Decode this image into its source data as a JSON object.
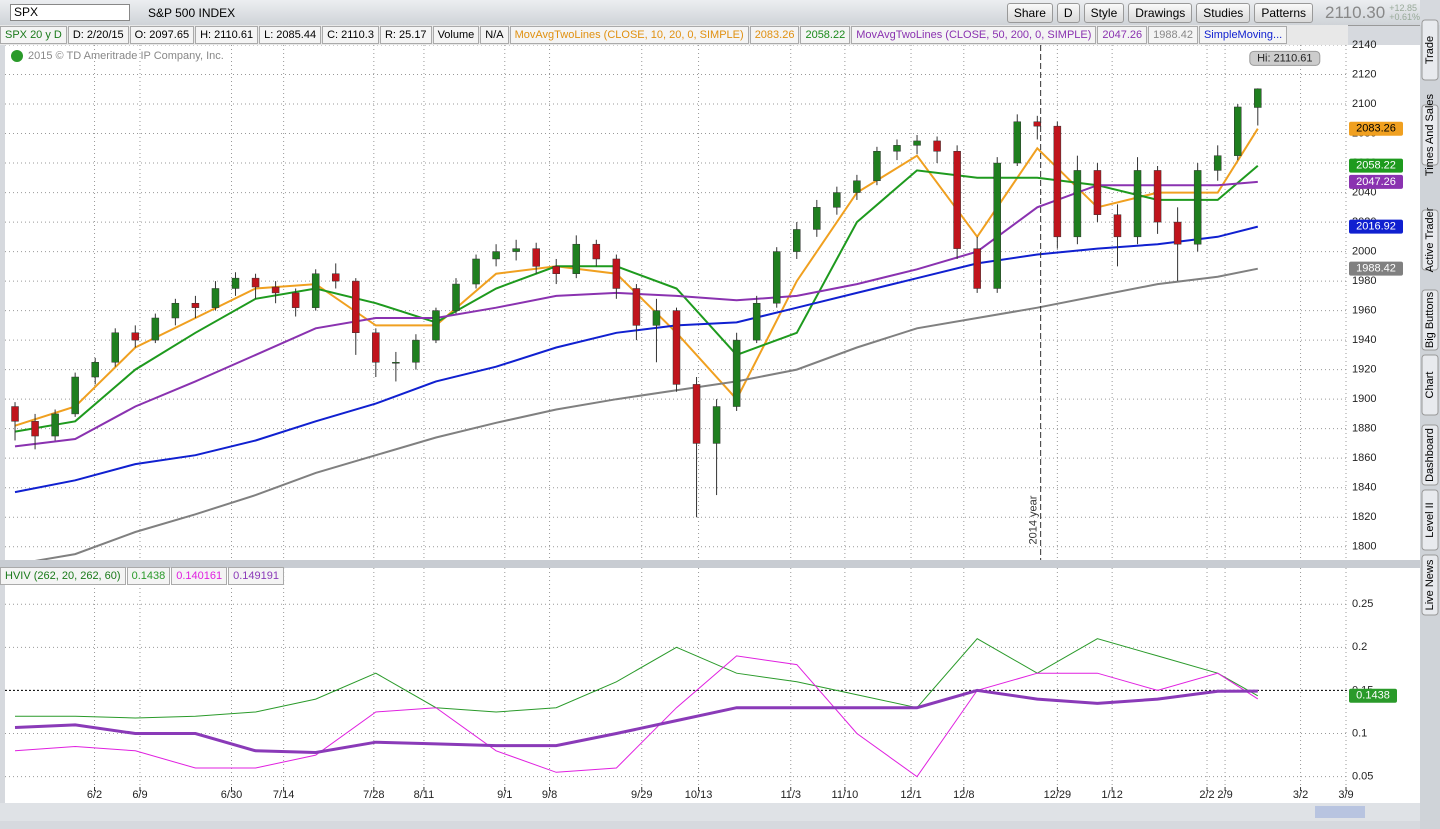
{
  "toolbar": {
    "symbol": "SPX",
    "name": "S&P 500 INDEX",
    "buttons": [
      "Share",
      "D",
      "Style",
      "Drawings",
      "Studies",
      "Patterns"
    ],
    "last": "2110.30",
    "change": "+12.85",
    "change_pct": "+0.61%"
  },
  "info_bar": {
    "items": [
      "SPX 20 y D",
      "D: 2/20/15",
      "O: 2097.65",
      "H: 2110.61",
      "L: 2085.44",
      "C: 2110.3",
      "R: 25.17",
      "Volume",
      "N/A"
    ],
    "study1": "MovAvgTwoLines (CLOSE, 10, 20, 0, SIMPLE)",
    "study2": "MovAvgTwoLines (CLOSE, 50, 200, 0, SIMPLE)",
    "study3": "SimpleMoving..."
  },
  "copyright": "2015 © TD Ameritrade IP Company, Inc.",
  "sidebar": [
    "Trade",
    "Times And Sales",
    "Active Trader",
    "Big Buttons",
    "Chart",
    "Dashboard",
    "Level II",
    "Live News"
  ],
  "chart_data": [
    {
      "type": "candlestick",
      "x": [
        1,
        4,
        7,
        10,
        13,
        16,
        19,
        22,
        25,
        28,
        31,
        34,
        37,
        40,
        43,
        46,
        49,
        52,
        55,
        58,
        61,
        64,
        67,
        70,
        73,
        76,
        79,
        82,
        85,
        88,
        91,
        94,
        97,
        100,
        103,
        106,
        109,
        112,
        115,
        118,
        121,
        124,
        127,
        130,
        133,
        136,
        139,
        142,
        145,
        148,
        151,
        154,
        157,
        160,
        163,
        166,
        169,
        172,
        175,
        178,
        181,
        184,
        187
      ],
      "open": [
        1895,
        1885,
        1875,
        1890,
        1915,
        1925,
        1945,
        1940,
        1955,
        1965,
        1962,
        1975,
        1982,
        1976,
        1972,
        1962,
        1985,
        1980,
        1945,
        1925,
        1925,
        1940,
        1960,
        1978,
        1995,
        2000,
        2002,
        1990,
        1985,
        2005,
        1995,
        1975,
        1950,
        1960,
        1910,
        1870,
        1895,
        1940,
        1965,
        2000,
        2015,
        2030,
        2040,
        2048,
        2068,
        2072,
        2075,
        2068,
        2002,
        1975,
        2060,
        2088,
        2085,
        2010,
        2055,
        2025,
        2010,
        2055,
        2020,
        2005,
        2055,
        2065,
        2097.65
      ],
      "high": [
        1898,
        1890,
        1893,
        1918,
        1928,
        1948,
        1950,
        1958,
        1968,
        1970,
        1980,
        1986,
        1985,
        1980,
        1975,
        1988,
        1992,
        1982,
        1948,
        1932,
        1944,
        1962,
        1982,
        1998,
        2005,
        2008,
        2006,
        1995,
        2011,
        2008,
        1998,
        1978,
        1968,
        1962,
        1915,
        1900,
        1945,
        1970,
        2003,
        2020,
        2035,
        2044,
        2052,
        2071,
        2076,
        2079,
        2078,
        2072,
        2010,
        2064,
        2093,
        2092,
        2088,
        2065,
        2060,
        2032,
        2064,
        2058,
        2030,
        2060,
        2072,
        2100,
        2110.61
      ],
      "low": [
        1872,
        1866,
        1872,
        1888,
        1910,
        1922,
        1935,
        1938,
        1950,
        1955,
        1960,
        1970,
        1968,
        1965,
        1956,
        1960,
        1975,
        1930,
        1915,
        1912,
        1920,
        1938,
        1958,
        1975,
        1990,
        1994,
        1985,
        1978,
        1982,
        1990,
        1968,
        1940,
        1925,
        1905,
        1820,
        1835,
        1892,
        1938,
        1962,
        1995,
        2010,
        2025,
        2035,
        2045,
        2062,
        2066,
        2060,
        1995,
        1972,
        1972,
        2058,
        2076,
        2002,
        2005,
        2020,
        1990,
        2005,
        2012,
        1980,
        2000,
        2048,
        2062,
        2085.44
      ],
      "close": [
        1885,
        1875,
        1890,
        1915,
        1925,
        1945,
        1940,
        1955,
        1965,
        1962,
        1975,
        1982,
        1976,
        1972,
        1962,
        1985,
        1980,
        1945,
        1925,
        1925,
        1940,
        1960,
        1978,
        1995,
        2000,
        2002,
        1990,
        1985,
        2005,
        1995,
        1975,
        1950,
        1960,
        1910,
        1870,
        1895,
        1940,
        1965,
        2000,
        2015,
        2030,
        2040,
        2048,
        2068,
        2072,
        2075,
        2068,
        2002,
        1975,
        2060,
        2088,
        2085,
        2010,
        2055,
        2025,
        2010,
        2055,
        2020,
        2005,
        2055,
        2065,
        2098,
        2110.3
      ],
      "up_color": "#1f7f1f",
      "down_color": "#c0141c",
      "lines": [
        {
          "color": "#f0a020",
          "x": [
            1,
            10,
            19,
            28,
            37,
            46,
            55,
            64,
            73,
            82,
            91,
            100,
            109,
            118,
            127,
            136,
            145,
            154,
            163,
            172,
            181,
            187
          ],
          "values": [
            1882,
            1895,
            1935,
            1955,
            1975,
            1978,
            1950,
            1950,
            1985,
            1990,
            1985,
            1945,
            1900,
            1980,
            2040,
            2065,
            2010,
            2070,
            2030,
            2040,
            2040,
            2083.26
          ]
        },
        {
          "color": "#1e9a1e",
          "x": [
            1,
            10,
            19,
            28,
            37,
            46,
            55,
            64,
            73,
            82,
            91,
            100,
            109,
            118,
            127,
            136,
            145,
            154,
            163,
            172,
            181,
            187
          ],
          "values": [
            1878,
            1885,
            1920,
            1945,
            1968,
            1975,
            1965,
            1952,
            1975,
            1990,
            1990,
            1975,
            1930,
            1945,
            2020,
            2055,
            2050,
            2050,
            2045,
            2035,
            2035,
            2058.22
          ]
        },
        {
          "color": "#8a32b0",
          "x": [
            1,
            10,
            19,
            28,
            37,
            46,
            55,
            64,
            73,
            82,
            91,
            100,
            109,
            118,
            127,
            136,
            145,
            154,
            163,
            172,
            181,
            187
          ],
          "values": [
            1868,
            1873,
            1895,
            1912,
            1930,
            1948,
            1955,
            1955,
            1962,
            1970,
            1972,
            1970,
            1967,
            1970,
            1978,
            1988,
            2000,
            2030,
            2045,
            2045,
            2045,
            2047.26
          ]
        },
        {
          "color": "#1020d0",
          "x": [
            1,
            10,
            19,
            28,
            37,
            46,
            55,
            64,
            73,
            82,
            91,
            100,
            109,
            118,
            127,
            136,
            145,
            154,
            163,
            172,
            181,
            187
          ],
          "values": [
            1837,
            1845,
            1856,
            1862,
            1872,
            1885,
            1897,
            1912,
            1922,
            1935,
            1945,
            1950,
            1952,
            1962,
            1972,
            1982,
            1992,
            1998,
            2002,
            2005,
            2010,
            2016.92
          ]
        },
        {
          "color": "#808080",
          "x": [
            1,
            10,
            19,
            28,
            37,
            46,
            55,
            64,
            73,
            82,
            91,
            100,
            109,
            118,
            127,
            136,
            145,
            154,
            163,
            172,
            181,
            187
          ],
          "values": [
            1788,
            1795,
            1810,
            1822,
            1835,
            1850,
            1862,
            1874,
            1884,
            1893,
            1900,
            1906,
            1912,
            1920,
            1935,
            1948,
            1955,
            1962,
            1970,
            1978,
            1983,
            1988.42
          ]
        }
      ],
      "xlim": [
        -0.5,
        200.5
      ],
      "ylim": [
        1791,
        2140
      ],
      "yticks": [
        1800,
        1820,
        1840,
        1860,
        1880,
        1900,
        1920,
        1940,
        1960,
        1980,
        2000,
        2020,
        2040,
        2060,
        2080,
        2100,
        2120,
        2140
      ],
      "xticks": [
        {
          "value": 12.9,
          "label": "6/2"
        },
        {
          "value": 19.7,
          "label": "6/9"
        },
        {
          "value": 33.4,
          "label": "6/30"
        },
        {
          "value": 41.2,
          "label": "7/14"
        },
        {
          "value": 54.7,
          "label": "7/28"
        },
        {
          "value": 62.2,
          "label": "8/11"
        },
        {
          "value": 74.3,
          "label": "9/1"
        },
        {
          "value": 81.0,
          "label": "9/8"
        },
        {
          "value": 94.8,
          "label": "9/29"
        },
        {
          "value": 103.3,
          "label": "10/13"
        },
        {
          "value": 117.1,
          "label": "11/3"
        },
        {
          "value": 125.2,
          "label": "11/10"
        },
        {
          "value": 135.1,
          "label": "12/1"
        },
        {
          "value": 143.0,
          "label": "12/8"
        },
        {
          "value": 157.0,
          "label": "12/29"
        },
        {
          "value": 165.2,
          "label": "1/12"
        },
        {
          "value": 179.4,
          "label": "2/2"
        },
        {
          "value": 182.1,
          "label": "2/9"
        },
        {
          "value": 193.4,
          "label": "3/2"
        },
        {
          "value": 200.2,
          "label": "3/9"
        }
      ],
      "grid": true,
      "hi_label": "Hi: 2110.61",
      "marker": {
        "x": 154.5,
        "label": "2014 year"
      }
    },
    {
      "type": "line",
      "title": "HVIV (262, 20, 262, 60)",
      "x": [
        1,
        10,
        19,
        28,
        37,
        46,
        55,
        64,
        73,
        82,
        91,
        100,
        109,
        118,
        127,
        136,
        145,
        154,
        163,
        172,
        181,
        187
      ],
      "series": [
        {
          "color": "#2a9a2a",
          "values": [
            0.12,
            0.12,
            0.118,
            0.12,
            0.125,
            0.14,
            0.17,
            0.13,
            0.125,
            0.13,
            0.16,
            0.2,
            0.17,
            0.16,
            0.145,
            0.13,
            0.21,
            0.17,
            0.21,
            0.19,
            0.17,
            0.1438
          ]
        },
        {
          "color": "#e020e0",
          "values": [
            0.08,
            0.085,
            0.08,
            0.06,
            0.06,
            0.075,
            0.125,
            0.13,
            0.08,
            0.055,
            0.06,
            0.13,
            0.19,
            0.18,
            0.1,
            0.05,
            0.15,
            0.17,
            0.17,
            0.15,
            0.17,
            0.140161
          ]
        },
        {
          "color": "#8a3ab8",
          "line_width": 3,
          "values": [
            0.107,
            0.11,
            0.1,
            0.1,
            0.08,
            0.078,
            0.09,
            0.088,
            0.086,
            0.086,
            0.1,
            0.115,
            0.13,
            0.13,
            0.13,
            0.13,
            0.15,
            0.14,
            0.135,
            0.14,
            0.149,
            0.149191
          ]
        }
      ],
      "xlim": [
        -0.5,
        200.5
      ],
      "ylim": [
        0.038,
        0.292
      ],
      "yticks": [
        0.05,
        0.1,
        0.15,
        0.2,
        0.25
      ],
      "ref_line": 0.15,
      "grid": true
    }
  ]
}
